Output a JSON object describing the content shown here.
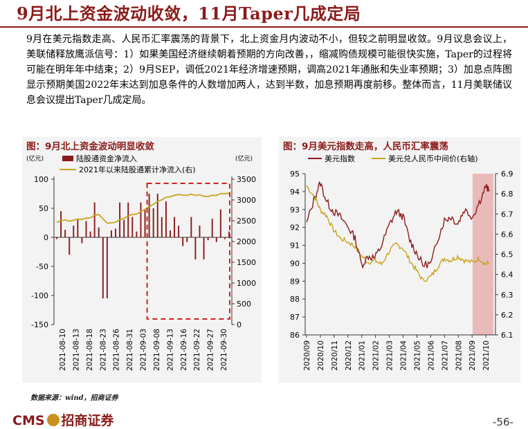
{
  "title": "9月北上资金波动收敛，11月Taper几成定局",
  "body": "9月在美元指数走高、人民币汇率震荡的背景下，北上资金月内波动不小，但较之前明显收敛。9月议息会议上，美联储释放鹰派信号：1）如果美国经济继续朝着预期的方向改善，，缩减购债规模可能很快实施，Taper的过程将可能在明年年中结束；2）9月SEP，调低2021年经济增速预期，调高2021年通胀和失业率预期；3）加息点阵图显示预期美国2022年末达到加息条件的人数增加两人，达到半数，加息预期再度前移。整体而言，11月美联储议息会议提出Taper几成定局。",
  "source": "数据来源：wind，招商证券",
  "logo": {
    "latin": "CMS",
    "cn": "招商证券"
  },
  "page_number": "-56-",
  "colors": {
    "accent": "#8b1a1a",
    "gold": "#c8a21a",
    "highlight": "#e8b4b4",
    "dash": "#cc1f1f"
  },
  "chart_data": [
    {
      "type": "bar",
      "title": "图：9月北上资金波动明显收敛",
      "left_unit": "(亿元)",
      "right_unit": "(亿元)",
      "legend": [
        "陆股通资金净流入",
        "2021年以来陆股通累计净流入(右)"
      ],
      "ylim": [
        -150,
        100
      ],
      "yticks": [
        100,
        50,
        0,
        -50,
        -100,
        -150
      ],
      "y2lim": [
        0,
        3500
      ],
      "y2ticks": [
        3500,
        3000,
        2500,
        2000,
        1500,
        1000,
        500,
        0
      ],
      "xtick_labels": [
        "2021-08-10",
        "2021-08-13",
        "2021-08-18",
        "2021-08-23",
        "2021-08-26",
        "2021-08-31",
        "2021-09-03",
        "2021-09-08",
        "2021-09-13",
        "2021-09-16",
        "2021-09-22",
        "2021-09-27",
        "2021-09-30"
      ],
      "dates": [
        "08-02",
        "08-03",
        "08-04",
        "08-05",
        "08-06",
        "08-09",
        "08-10",
        "08-11",
        "08-12",
        "08-13",
        "08-16",
        "08-17",
        "08-18",
        "08-19",
        "08-20",
        "08-23",
        "08-24",
        "08-25",
        "08-26",
        "08-27",
        "08-30",
        "08-31",
        "09-01",
        "09-02",
        "09-03",
        "09-06",
        "09-07",
        "09-08",
        "09-09",
        "09-10",
        "09-13",
        "09-14",
        "09-15",
        "09-16",
        "09-17",
        "09-22",
        "09-23",
        "09-24",
        "09-27",
        "09-28",
        "09-29",
        "09-30"
      ],
      "series": [
        {
          "name": "陆股通资金净流入",
          "kind": "bar",
          "values": [
            -3,
            45,
            13,
            -30,
            20,
            30,
            -10,
            28,
            10,
            60,
            17,
            -105,
            -105,
            12,
            15,
            60,
            30,
            60,
            35,
            10,
            60,
            48,
            75,
            50,
            75,
            35,
            62,
            12,
            35,
            20,
            -15,
            -8,
            35,
            -38,
            20,
            -38,
            -5,
            32,
            -8,
            48,
            -3,
            10
          ]
        },
        {
          "name": "2021年以来陆股通累计净流入(右)",
          "kind": "line",
          "values": [
            2460,
            2500,
            2520,
            2490,
            2510,
            2540,
            2530,
            2560,
            2570,
            2630,
            2650,
            2545,
            2440,
            2450,
            2465,
            2525,
            2555,
            2615,
            2650,
            2660,
            2720,
            2768,
            2843,
            2893,
            2968,
            3003,
            3065,
            3077,
            3112,
            3132,
            3117,
            3109,
            3144,
            3106,
            3126,
            3088,
            3083,
            3115,
            3107,
            3155,
            3152,
            3162
          ]
        }
      ],
      "highlight_box": "2021-09 (dashed)"
    },
    {
      "type": "line",
      "title": "图：9月美元指数走高，人民币汇率震荡",
      "legend": [
        "美元指数",
        "美元兑人民币中间价(右轴)"
      ],
      "ylim": [
        86,
        95
      ],
      "yticks": [
        95,
        94,
        93,
        92,
        91,
        90,
        89,
        88,
        87,
        86
      ],
      "y2lim": [
        6.1,
        6.9
      ],
      "y2ticks": [
        6.9,
        6.8,
        6.7,
        6.6,
        6.5,
        6.4,
        6.3,
        6.2,
        6.1
      ],
      "xtick_labels": [
        "2020/09",
        "2020/10",
        "2020/11",
        "2020/12",
        "2021/01",
        "2021/02",
        "2021/03",
        "2021/04",
        "2021/05",
        "2021/06",
        "2021/07",
        "2021/08",
        "2021/09",
        "2021/10"
      ],
      "series": [
        {
          "name": "美元指数",
          "x": [
            2020.667,
            2020.72,
            2020.75,
            2020.79,
            2020.83,
            2020.87,
            2020.92,
            2020.96,
            2021.0,
            2021.04,
            2021.08,
            2021.12,
            2021.17,
            2021.21,
            2021.25,
            2021.29,
            2021.33,
            2021.37,
            2021.42,
            2021.46,
            2021.5,
            2021.54,
            2021.58,
            2021.62,
            2021.67,
            2021.71,
            2021.75,
            2021.77
          ],
          "values": [
            92.2,
            93.8,
            94.5,
            93.4,
            92.9,
            92.6,
            92.0,
            91.4,
            89.9,
            90.4,
            90.3,
            91.0,
            92.2,
            92.9,
            92.6,
            91.3,
            90.6,
            89.9,
            90.0,
            91.4,
            92.4,
            92.6,
            92.2,
            93.0,
            92.6,
            93.4,
            94.3,
            94.0
          ]
        },
        {
          "name": "美元兑人民币中间价(右轴)",
          "x": [
            2020.667,
            2020.72,
            2020.75,
            2020.79,
            2020.83,
            2020.87,
            2020.92,
            2020.96,
            2021.0,
            2021.04,
            2021.08,
            2021.12,
            2021.17,
            2021.21,
            2021.25,
            2021.29,
            2021.33,
            2021.37,
            2021.42,
            2021.46,
            2021.5,
            2021.54,
            2021.58,
            2021.62,
            2021.67,
            2021.71,
            2021.75,
            2021.77
          ],
          "values": [
            6.84,
            6.78,
            6.72,
            6.69,
            6.62,
            6.58,
            6.56,
            6.54,
            6.49,
            6.46,
            6.47,
            6.45,
            6.52,
            6.55,
            6.53,
            6.47,
            6.42,
            6.37,
            6.39,
            6.44,
            6.48,
            6.47,
            6.49,
            6.47,
            6.46,
            6.48,
            6.45,
            6.46
          ]
        }
      ],
      "highlight_band": [
        "2021/09",
        "2021/10"
      ]
    }
  ]
}
